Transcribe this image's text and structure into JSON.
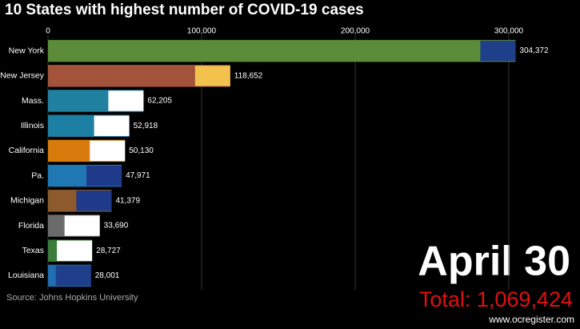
{
  "chart_data": {
    "type": "bar",
    "orientation": "horizontal",
    "title": "10 States with highest number of COVID-19 cases",
    "categories": [
      "New York",
      "New Jersey",
      "Mass.",
      "Illinois",
      "California",
      "Pa.",
      "Michigan",
      "Florida",
      "Texas",
      "Louisiana"
    ],
    "values": [
      304372,
      118652,
      62205,
      52918,
      50130,
      47971,
      41379,
      33690,
      28727,
      28001
    ],
    "value_labels": [
      "304,372",
      "118,652",
      "62,205",
      "52,918",
      "50,130",
      "47,971",
      "41,379",
      "33,690",
      "28,727",
      "28,001"
    ],
    "colors": [
      "#5b8c3a",
      "#a3533a",
      "#1f80a0",
      "#1c7fa3",
      "#d97b0c",
      "#1f78b4",
      "#8c5a2c",
      "#6a6a6a",
      "#3a7d3a",
      "#1f6fb2"
    ],
    "xlim": [
      0,
      330000
    ],
    "xticks": [
      0,
      {
        "value": 100000,
        "label": "100,000"
      },
      {
        "value": 200000,
        "label": "200,000"
      },
      {
        "value": 300000,
        "label": "300,000"
      }
    ],
    "grid": true,
    "date": "April 30",
    "total": "Total: 1,069,424",
    "source": "Source: Johns Hopkins University",
    "watermark": "www.ocregister.com"
  }
}
